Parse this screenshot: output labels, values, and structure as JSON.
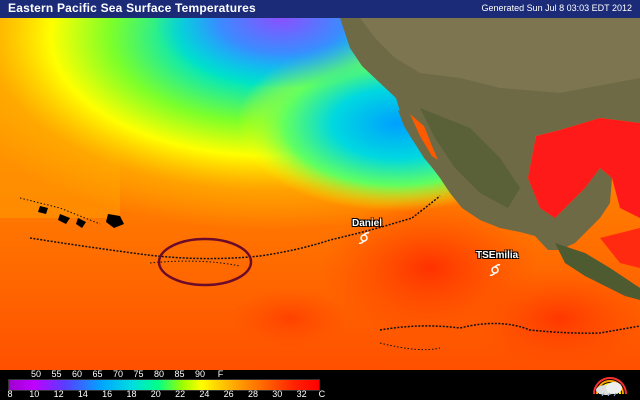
{
  "header": {
    "title": "Eastern Pacific Sea Surface Temperatures",
    "generated": "Generated Sun Jul  8 03:03 EDT 2012"
  },
  "storms": [
    {
      "label": "Daniel"
    },
    {
      "label": "TSEmilia"
    }
  ],
  "scale": {
    "fahrenheit_ticks": [
      "50",
      "55",
      "60",
      "65",
      "70",
      "75",
      "80",
      "85",
      "90"
    ],
    "fahrenheit_unit": "F",
    "celsius_ticks": [
      "8",
      "10",
      "12",
      "14",
      "16",
      "18",
      "20",
      "22",
      "24",
      "26",
      "28",
      "30",
      "32"
    ],
    "celsius_unit": "C"
  },
  "colors": {
    "title_bar": "#1b2b78",
    "warm_sst": "#ff5a00",
    "cool_sst": "#00d8e0",
    "land": "#6d6a45",
    "highlight_circle": "#6b0a2a"
  },
  "icons": [
    "hurricane-symbol-icon",
    "weather-logo-icon"
  ]
}
